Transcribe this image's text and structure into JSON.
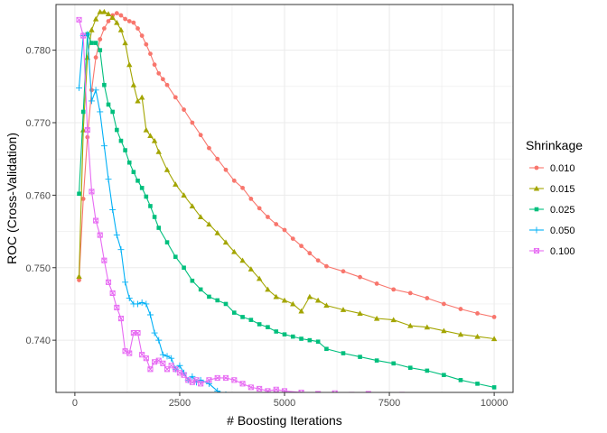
{
  "chart_data": {
    "type": "line",
    "xlabel": "# Boosting Iterations",
    "ylabel": "ROC (Cross-Validation)",
    "xlim": [
      -450,
      10450
    ],
    "ylim": [
      0.7328,
      0.7863
    ],
    "x_ticks": [
      0,
      2500,
      5000,
      7500,
      10000
    ],
    "x_tick_labels": [
      "0",
      "2500",
      "5000",
      "7500",
      "10000"
    ],
    "y_ticks": [
      0.74,
      0.75,
      0.76,
      0.77,
      0.78
    ],
    "y_tick_labels": [
      "0.740",
      "0.750",
      "0.760",
      "0.770",
      "0.780"
    ],
    "grid": true,
    "legend": {
      "title": "Shrinkage",
      "position": "right"
    },
    "series": [
      {
        "name": "0.010",
        "color": "#F8766D",
        "marker": "circle",
        "points": [
          [
            100,
            0.7483
          ],
          [
            200,
            0.7595
          ],
          [
            300,
            0.768
          ],
          [
            400,
            0.7745
          ],
          [
            500,
            0.779
          ],
          [
            600,
            0.7815
          ],
          [
            700,
            0.783
          ],
          [
            800,
            0.784
          ],
          [
            900,
            0.7848
          ],
          [
            1000,
            0.7851
          ],
          [
            1100,
            0.7848
          ],
          [
            1200,
            0.7843
          ],
          [
            1300,
            0.784
          ],
          [
            1400,
            0.7838
          ],
          [
            1500,
            0.783
          ],
          [
            1600,
            0.782
          ],
          [
            1700,
            0.7808
          ],
          [
            1800,
            0.7795
          ],
          [
            1900,
            0.778
          ],
          [
            2000,
            0.7768
          ],
          [
            2100,
            0.776
          ],
          [
            2200,
            0.7752
          ],
          [
            2400,
            0.7735
          ],
          [
            2600,
            0.7718
          ],
          [
            2800,
            0.77
          ],
          [
            3000,
            0.7683
          ],
          [
            3200,
            0.7665
          ],
          [
            3400,
            0.765
          ],
          [
            3600,
            0.7635
          ],
          [
            3800,
            0.762
          ],
          [
            4000,
            0.761
          ],
          [
            4200,
            0.7595
          ],
          [
            4400,
            0.7582
          ],
          [
            4600,
            0.757
          ],
          [
            4800,
            0.756
          ],
          [
            5000,
            0.7552
          ],
          [
            5200,
            0.754
          ],
          [
            5400,
            0.753
          ],
          [
            5600,
            0.752
          ],
          [
            5800,
            0.751
          ],
          [
            6000,
            0.7502
          ],
          [
            6400,
            0.7495
          ],
          [
            6800,
            0.7487
          ],
          [
            7200,
            0.7478
          ],
          [
            7600,
            0.747
          ],
          [
            8000,
            0.7465
          ],
          [
            8400,
            0.7458
          ],
          [
            8800,
            0.745
          ],
          [
            9200,
            0.7443
          ],
          [
            9600,
            0.7437
          ],
          [
            10000,
            0.7432
          ]
        ]
      },
      {
        "name": "0.015",
        "color": "#A3A500",
        "marker": "triangle",
        "points": [
          [
            100,
            0.7488
          ],
          [
            200,
            0.769
          ],
          [
            300,
            0.779
          ],
          [
            400,
            0.7828
          ],
          [
            500,
            0.7843
          ],
          [
            600,
            0.7853
          ],
          [
            700,
            0.7853
          ],
          [
            800,
            0.785
          ],
          [
            900,
            0.7845
          ],
          [
            1000,
            0.7838
          ],
          [
            1100,
            0.7828
          ],
          [
            1200,
            0.781
          ],
          [
            1300,
            0.778
          ],
          [
            1400,
            0.7752
          ],
          [
            1500,
            0.773
          ],
          [
            1600,
            0.7735
          ],
          [
            1700,
            0.769
          ],
          [
            1800,
            0.7682
          ],
          [
            1900,
            0.7675
          ],
          [
            2000,
            0.766
          ],
          [
            2200,
            0.7635
          ],
          [
            2400,
            0.7615
          ],
          [
            2600,
            0.76
          ],
          [
            2800,
            0.7585
          ],
          [
            3000,
            0.757
          ],
          [
            3200,
            0.756
          ],
          [
            3400,
            0.7548
          ],
          [
            3600,
            0.7535
          ],
          [
            3800,
            0.7522
          ],
          [
            4000,
            0.751
          ],
          [
            4200,
            0.7498
          ],
          [
            4400,
            0.7485
          ],
          [
            4600,
            0.747
          ],
          [
            4800,
            0.746
          ],
          [
            5000,
            0.7455
          ],
          [
            5200,
            0.745
          ],
          [
            5400,
            0.744
          ],
          [
            5600,
            0.746
          ],
          [
            5800,
            0.7455
          ],
          [
            6000,
            0.7448
          ],
          [
            6400,
            0.7442
          ],
          [
            6800,
            0.7437
          ],
          [
            7200,
            0.743
          ],
          [
            7600,
            0.7428
          ],
          [
            8000,
            0.742
          ],
          [
            8400,
            0.7418
          ],
          [
            8800,
            0.7413
          ],
          [
            9200,
            0.7408
          ],
          [
            9600,
            0.7405
          ],
          [
            10000,
            0.7402
          ]
        ]
      },
      {
        "name": "0.025",
        "color": "#00BF7D",
        "marker": "square",
        "points": [
          [
            100,
            0.7602
          ],
          [
            200,
            0.7715
          ],
          [
            300,
            0.7822
          ],
          [
            400,
            0.781
          ],
          [
            500,
            0.781
          ],
          [
            600,
            0.78
          ],
          [
            700,
            0.7752
          ],
          [
            800,
            0.7725
          ],
          [
            900,
            0.7715
          ],
          [
            1000,
            0.769
          ],
          [
            1100,
            0.7675
          ],
          [
            1200,
            0.7662
          ],
          [
            1300,
            0.7645
          ],
          [
            1400,
            0.7632
          ],
          [
            1500,
            0.762
          ],
          [
            1600,
            0.761
          ],
          [
            1700,
            0.7598
          ],
          [
            1800,
            0.7585
          ],
          [
            1900,
            0.757
          ],
          [
            2000,
            0.7555
          ],
          [
            2200,
            0.7535
          ],
          [
            2400,
            0.7515
          ],
          [
            2600,
            0.75
          ],
          [
            2800,
            0.7482
          ],
          [
            3000,
            0.747
          ],
          [
            3200,
            0.746
          ],
          [
            3400,
            0.7455
          ],
          [
            3600,
            0.745
          ],
          [
            3800,
            0.7438
          ],
          [
            4000,
            0.7432
          ],
          [
            4200,
            0.7428
          ],
          [
            4400,
            0.7422
          ],
          [
            4600,
            0.7418
          ],
          [
            4800,
            0.7412
          ],
          [
            5000,
            0.7408
          ],
          [
            5200,
            0.7405
          ],
          [
            5400,
            0.7402
          ],
          [
            5600,
            0.74
          ],
          [
            5800,
            0.7398
          ],
          [
            6000,
            0.7388
          ],
          [
            6400,
            0.7382
          ],
          [
            6800,
            0.7377
          ],
          [
            7200,
            0.7372
          ],
          [
            7600,
            0.7368
          ],
          [
            8000,
            0.7362
          ],
          [
            8400,
            0.7358
          ],
          [
            8800,
            0.7352
          ],
          [
            9200,
            0.7345
          ],
          [
            9600,
            0.734
          ],
          [
            10000,
            0.7335
          ]
        ]
      },
      {
        "name": "0.050",
        "color": "#00B0F6",
        "marker": "plus",
        "points": [
          [
            100,
            0.7748
          ],
          [
            200,
            0.782
          ],
          [
            300,
            0.7822
          ],
          [
            400,
            0.773
          ],
          [
            500,
            0.7745
          ],
          [
            600,
            0.7715
          ],
          [
            700,
            0.7668
          ],
          [
            800,
            0.7622
          ],
          [
            900,
            0.758
          ],
          [
            1000,
            0.7545
          ],
          [
            1100,
            0.7525
          ],
          [
            1200,
            0.748
          ],
          [
            1300,
            0.7458
          ],
          [
            1400,
            0.745
          ],
          [
            1500,
            0.745
          ],
          [
            1600,
            0.7452
          ],
          [
            1700,
            0.745
          ],
          [
            1800,
            0.7435
          ],
          [
            1900,
            0.741
          ],
          [
            2000,
            0.74
          ],
          [
            2100,
            0.738
          ],
          [
            2200,
            0.7378
          ],
          [
            2300,
            0.7375
          ],
          [
            2400,
            0.736
          ],
          [
            2500,
            0.7365
          ],
          [
            2600,
            0.7355
          ],
          [
            2700,
            0.7345
          ],
          [
            2800,
            0.735
          ],
          [
            2900,
            0.7342
          ],
          [
            3000,
            0.7345
          ],
          [
            3200,
            0.734
          ],
          [
            3400,
            0.733
          ],
          [
            3600,
            0.7325
          ],
          [
            3800,
            0.7322
          ],
          [
            4000,
            0.732
          ],
          [
            4200,
            0.7318
          ],
          [
            4400,
            0.7316
          ],
          [
            4600,
            0.7315
          ],
          [
            4800,
            0.7313
          ],
          [
            5000,
            0.7312
          ],
          [
            5400,
            0.731
          ],
          [
            5800,
            0.7308
          ],
          [
            6200,
            0.7306
          ],
          [
            6600,
            0.7305
          ],
          [
            7000,
            0.7304
          ],
          [
            7400,
            0.7303
          ],
          [
            7800,
            0.7302
          ],
          [
            8200,
            0.7301
          ],
          [
            8600,
            0.73
          ],
          [
            9000,
            0.73
          ],
          [
            9400,
            0.7299
          ],
          [
            10000,
            0.7298
          ]
        ]
      },
      {
        "name": "0.100",
        "color": "#E76BF3",
        "marker": "boxx",
        "points": [
          [
            100,
            0.7842
          ],
          [
            200,
            0.782
          ],
          [
            300,
            0.769
          ],
          [
            400,
            0.7605
          ],
          [
            500,
            0.7565
          ],
          [
            600,
            0.7545
          ],
          [
            700,
            0.751
          ],
          [
            800,
            0.748
          ],
          [
            900,
            0.7465
          ],
          [
            1000,
            0.7445
          ],
          [
            1100,
            0.743
          ],
          [
            1200,
            0.7385
          ],
          [
            1300,
            0.7382
          ],
          [
            1400,
            0.741
          ],
          [
            1500,
            0.741
          ],
          [
            1600,
            0.738
          ],
          [
            1700,
            0.7375
          ],
          [
            1800,
            0.736
          ],
          [
            1900,
            0.737
          ],
          [
            2000,
            0.7372
          ],
          [
            2100,
            0.7368
          ],
          [
            2200,
            0.736
          ],
          [
            2300,
            0.7365
          ],
          [
            2400,
            0.736
          ],
          [
            2500,
            0.7355
          ],
          [
            2600,
            0.7352
          ],
          [
            2700,
            0.7345
          ],
          [
            2800,
            0.7342
          ],
          [
            2900,
            0.7345
          ],
          [
            3000,
            0.734
          ],
          [
            3200,
            0.7345
          ],
          [
            3400,
            0.7348
          ],
          [
            3600,
            0.7348
          ],
          [
            3800,
            0.7345
          ],
          [
            4000,
            0.734
          ],
          [
            4200,
            0.7335
          ],
          [
            4400,
            0.7333
          ],
          [
            4600,
            0.733
          ],
          [
            4800,
            0.7332
          ],
          [
            5000,
            0.733
          ],
          [
            5400,
            0.7328
          ],
          [
            5800,
            0.7326
          ],
          [
            6200,
            0.7327
          ],
          [
            6600,
            0.7325
          ],
          [
            7000,
            0.7326
          ],
          [
            7400,
            0.7324
          ],
          [
            7800,
            0.7325
          ],
          [
            8200,
            0.7322
          ],
          [
            8600,
            0.7323
          ],
          [
            9000,
            0.732
          ],
          [
            9400,
            0.7321
          ],
          [
            10000,
            0.7318
          ]
        ]
      }
    ]
  }
}
